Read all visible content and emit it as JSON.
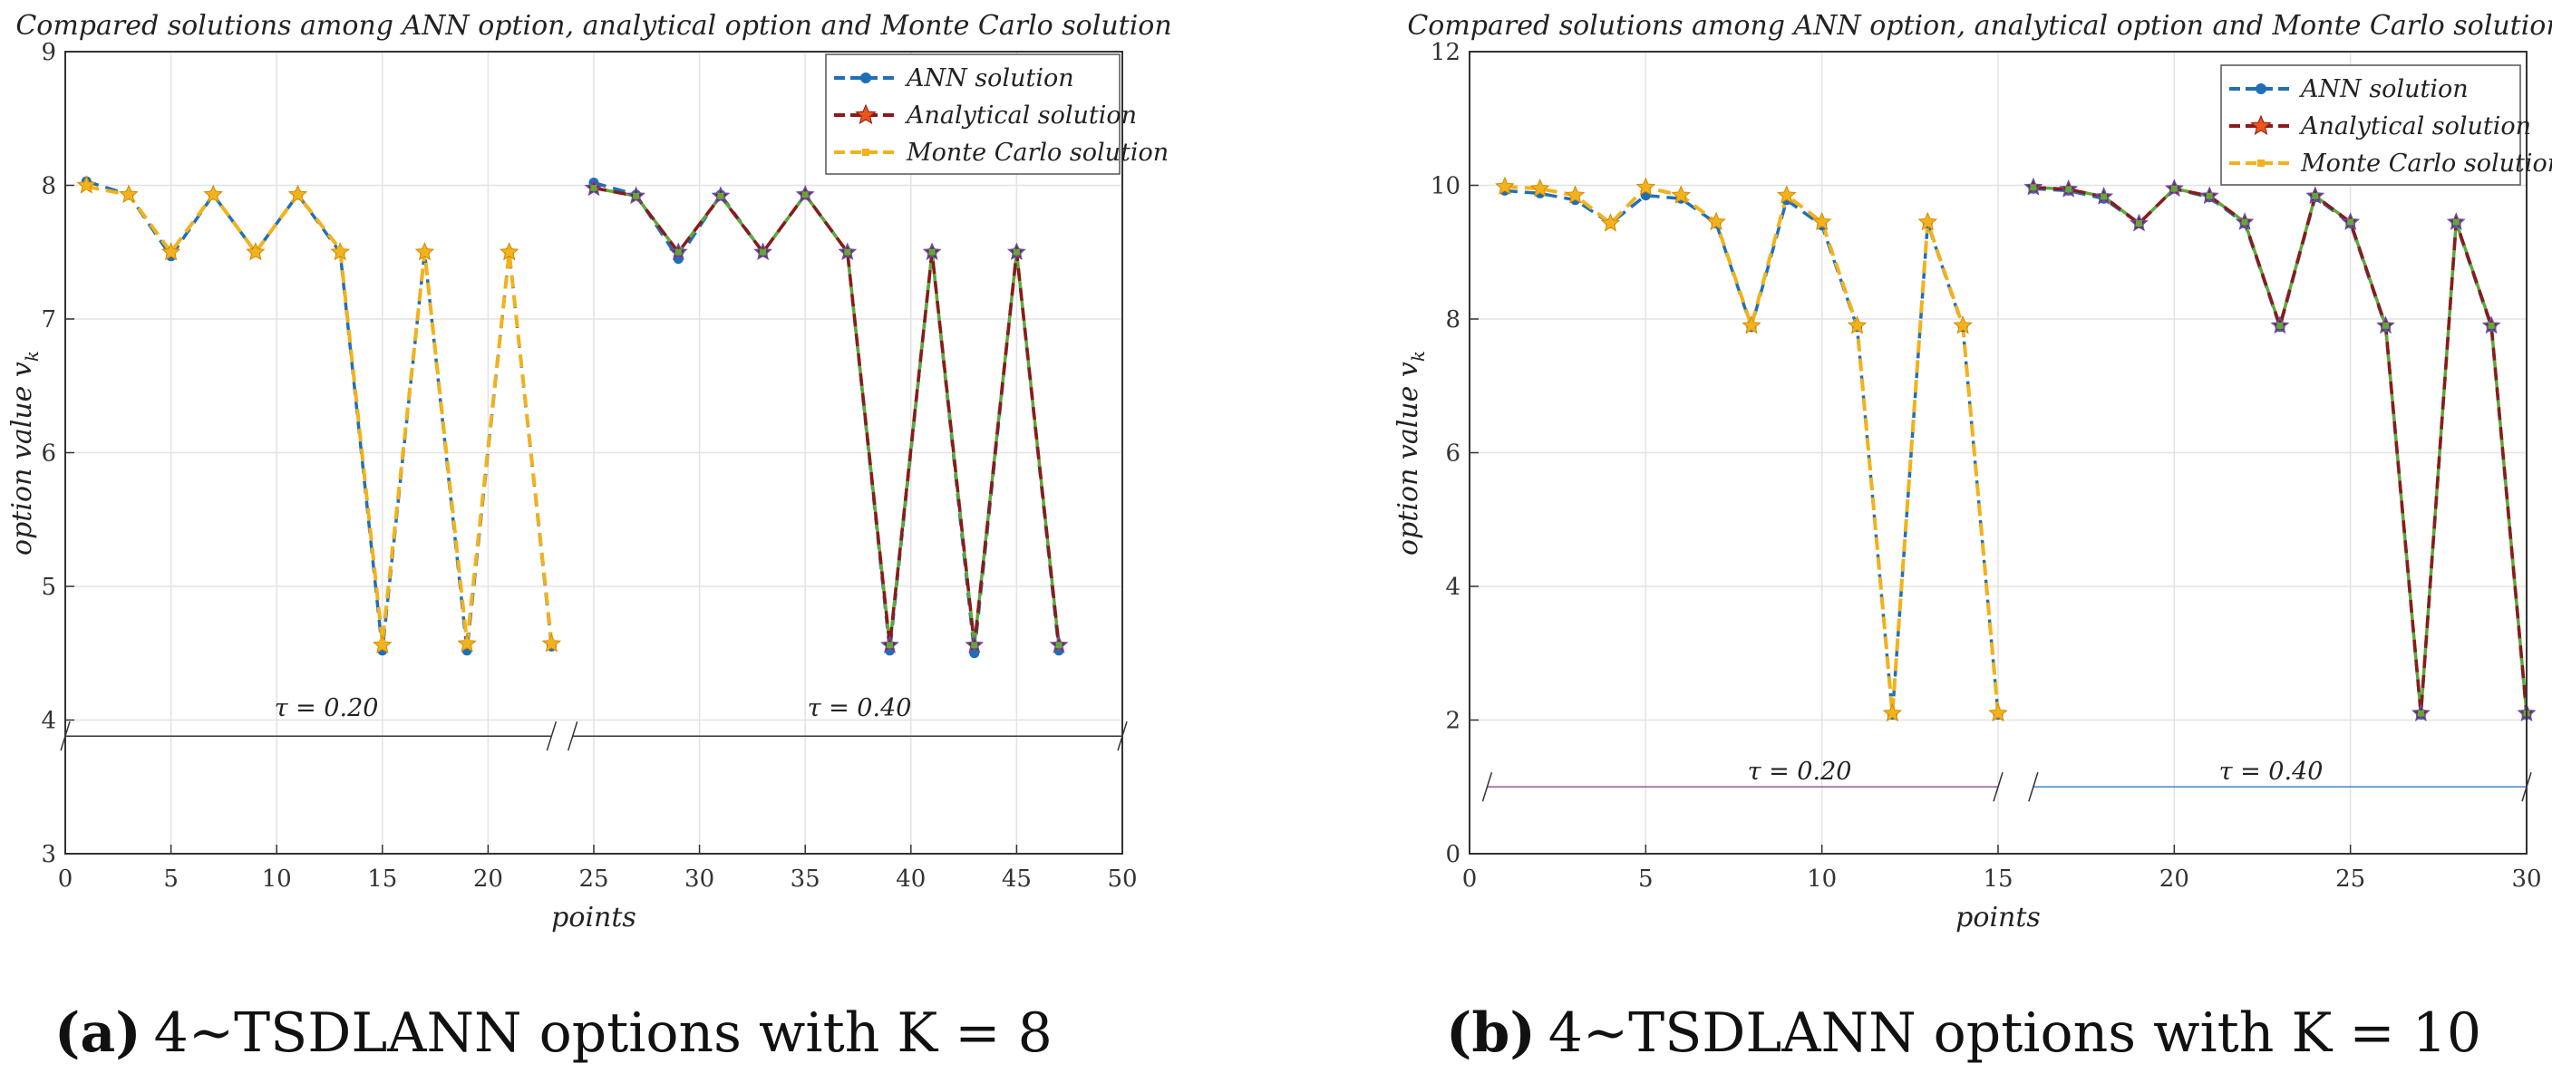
{
  "colors": {
    "ann": "#1f6fb8",
    "analytical": "#8b1a1a",
    "montecarlo": "#f2b21c",
    "grid": "#e3e3e3",
    "green": "#5fa83a",
    "tau_line_a": "#333333",
    "tau_line_b1": "#8e5a9a",
    "tau_line_b2": "#3b86c6"
  },
  "charts": [
    {
      "panel": "a",
      "caption_label": "(a)",
      "caption_text": "4∼TSDLANN options with K = 8",
      "title": "Compared solutions among ANN option, analytical option and Monte Carlo solution",
      "xlabel": "points",
      "ylabel": "option value v",
      "ylabel_sub": "k",
      "x_ticks": [
        "0",
        "5",
        "10",
        "15",
        "20",
        "25",
        "30",
        "35",
        "40",
        "45",
        "50"
      ],
      "y_ticks": [
        "3",
        "4",
        "5",
        "6",
        "7",
        "8",
        "9"
      ],
      "legend": [
        "ANN solution",
        "Analytical solution",
        "Monte Carlo solution"
      ],
      "tau_labels": [
        "τ = 0.20",
        "τ = 0.40"
      ]
    },
    {
      "panel": "b",
      "caption_label": "(b)",
      "caption_text": "4∼TSDLANN options with K = 10",
      "title": "Compared solutions among ANN option, analytical option and Monte Carlo solution",
      "xlabel": "points",
      "ylabel": "option value v",
      "ylabel_sub": "k",
      "x_ticks": [
        "0",
        "5",
        "10",
        "15",
        "20",
        "25",
        "30"
      ],
      "y_ticks": [
        "0",
        "2",
        "4",
        "6",
        "8",
        "10",
        "12"
      ],
      "legend": [
        "ANN solution",
        "Analytical solution",
        "Monte Carlo solution"
      ],
      "tau_labels": [
        "τ = 0.20",
        "τ = 0.40"
      ]
    }
  ],
  "chart_data": [
    {
      "type": "line",
      "title": "Compared solutions among ANN option, analytical option and Monte Carlo solution",
      "xlabel": "points",
      "ylabel": "option value v_k",
      "xlim": [
        0,
        50
      ],
      "ylim": [
        3,
        9
      ],
      "grid": true,
      "legend_position": "top-right",
      "segments": [
        {
          "name": "tau = 0.20",
          "x": [
            1,
            3,
            5,
            7,
            9,
            11,
            13,
            15,
            17,
            19,
            21,
            23
          ],
          "series": [
            {
              "name": "ANN solution",
              "values": [
                8.03,
                7.93,
                7.47,
                7.93,
                7.5,
                7.93,
                7.5,
                4.52,
                7.5,
                4.52,
                7.5,
                4.55
              ]
            },
            {
              "name": "Analytical solution",
              "values": [
                8.0,
                7.93,
                7.5,
                7.93,
                7.5,
                7.93,
                7.5,
                4.56,
                7.5,
                4.57,
                7.5,
                4.57
              ]
            },
            {
              "name": "Monte Carlo solution",
              "values": [
                7.99,
                7.93,
                7.5,
                7.93,
                7.5,
                7.93,
                7.52,
                4.58,
                7.5,
                4.58,
                7.5,
                4.58
              ]
            }
          ]
        },
        {
          "name": "tau = 0.40",
          "x": [
            25,
            27,
            29,
            31,
            33,
            35,
            37,
            39,
            41,
            43,
            45,
            47
          ],
          "series": [
            {
              "name": "ANN solution",
              "values": [
                8.02,
                7.93,
                7.45,
                7.93,
                7.5,
                7.93,
                7.5,
                4.52,
                7.5,
                4.5,
                7.5,
                4.52
              ]
            },
            {
              "name": "Analytical solution",
              "values": [
                7.98,
                7.92,
                7.5,
                7.92,
                7.5,
                7.93,
                7.5,
                4.56,
                7.5,
                4.56,
                7.5,
                4.56
              ]
            },
            {
              "name": "Monte Carlo solution",
              "values": [
                7.98,
                7.92,
                7.5,
                7.92,
                7.5,
                7.93,
                7.5,
                4.56,
                7.5,
                4.56,
                7.5,
                4.56
              ]
            }
          ]
        }
      ],
      "annotations": [
        "τ = 0.20",
        "τ = 0.40"
      ]
    },
    {
      "type": "line",
      "title": "Compared solutions among ANN option, analytical option and Monte Carlo solution",
      "xlabel": "points",
      "ylabel": "option value v_k",
      "xlim": [
        0,
        30
      ],
      "ylim": [
        0,
        12
      ],
      "grid": true,
      "legend_position": "top-right",
      "segments": [
        {
          "name": "tau = 0.20",
          "x": [
            1,
            2,
            3,
            4,
            5,
            6,
            7,
            8,
            9,
            10,
            11,
            12,
            13,
            14,
            15
          ],
          "series": [
            {
              "name": "ANN solution",
              "values": [
                9.92,
                9.88,
                9.78,
                9.43,
                9.85,
                9.8,
                9.43,
                7.88,
                9.78,
                9.4,
                7.88,
                2.08,
                9.43,
                7.88,
                2.08
              ]
            },
            {
              "name": "Analytical solution",
              "values": [
                9.98,
                9.95,
                9.85,
                9.43,
                9.97,
                9.85,
                9.45,
                7.9,
                9.85,
                9.45,
                7.9,
                2.1,
                9.45,
                7.9,
                2.1
              ]
            },
            {
              "name": "Monte Carlo solution",
              "values": [
                9.98,
                9.95,
                9.85,
                9.43,
                9.97,
                9.85,
                9.45,
                7.9,
                9.85,
                9.45,
                7.9,
                2.1,
                9.45,
                7.9,
                2.1
              ]
            }
          ]
        },
        {
          "name": "tau = 0.40",
          "x": [
            16,
            17,
            18,
            19,
            20,
            21,
            22,
            23,
            24,
            25,
            26,
            27,
            28,
            29,
            30
          ],
          "series": [
            {
              "name": "ANN solution",
              "values": [
                9.95,
                9.92,
                9.8,
                9.43,
                9.95,
                9.82,
                9.43,
                7.88,
                9.82,
                9.43,
                7.88,
                2.08,
                9.43,
                7.88,
                2.08
              ]
            },
            {
              "name": "Analytical solution",
              "values": [
                9.97,
                9.94,
                9.83,
                9.43,
                9.95,
                9.84,
                9.45,
                7.9,
                9.84,
                9.45,
                7.9,
                2.1,
                9.45,
                7.9,
                2.1
              ]
            },
            {
              "name": "Monte Carlo solution",
              "values": [
                9.97,
                9.94,
                9.83,
                9.43,
                9.95,
                9.84,
                9.45,
                7.9,
                9.84,
                9.45,
                7.9,
                2.1,
                9.45,
                7.9,
                2.1
              ]
            }
          ]
        }
      ],
      "annotations": [
        "τ = 0.20",
        "τ = 0.40"
      ]
    }
  ]
}
